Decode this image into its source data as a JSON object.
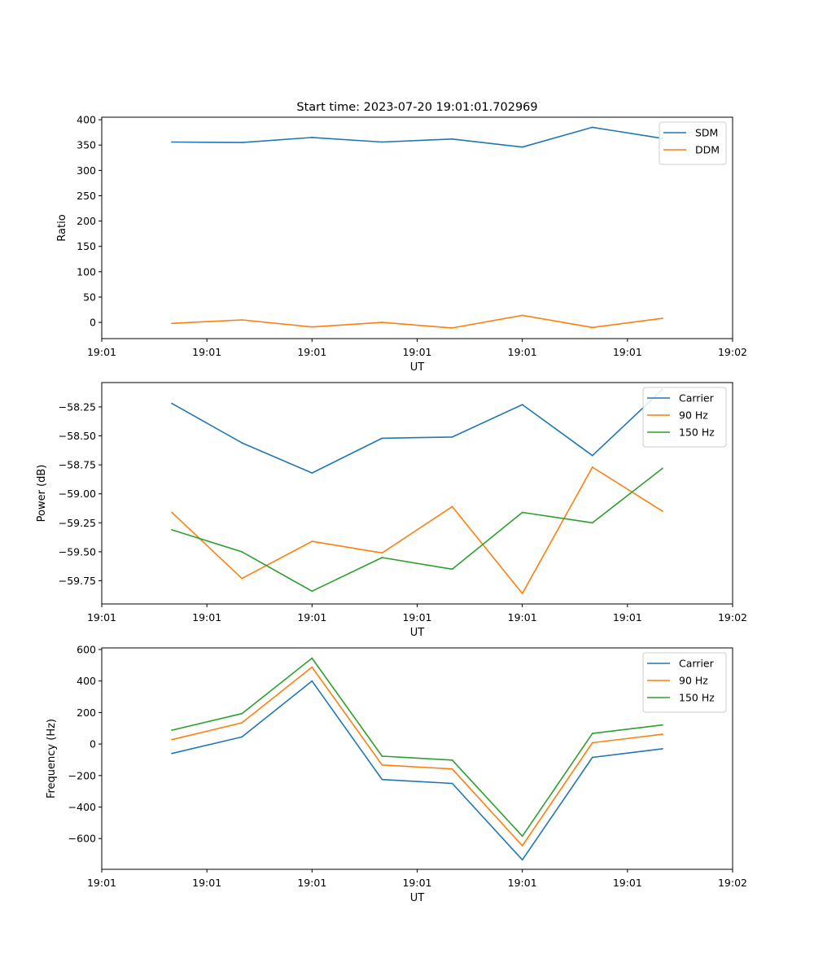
{
  "figure": {
    "title": "Start time: 2023-07-20 19:01:01.702969"
  },
  "colors": {
    "blue": "#1f77b4",
    "orange": "#ff7f0e",
    "green": "#2ca02c"
  },
  "chart_data": [
    {
      "type": "line",
      "title": "Start time: 2023-07-20 19:01:01.702969",
      "xlabel": "UT",
      "ylabel": "Ratio",
      "x": [
        1,
        2,
        3,
        4,
        5,
        6,
        7,
        8
      ],
      "xlim": [
        0,
        9
      ],
      "xticks": [
        0,
        1.5,
        3,
        4.5,
        6,
        7.5,
        9
      ],
      "xtick_labels": [
        "19:01",
        "19:01",
        "19:01",
        "19:01",
        "19:01",
        "19:01",
        "19:02"
      ],
      "ylim": [
        -32,
        405
      ],
      "yticks": [
        0,
        50,
        100,
        150,
        200,
        250,
        300,
        350,
        400
      ],
      "ytick_labels": [
        "0",
        "50",
        "100",
        "150",
        "200",
        "250",
        "300",
        "350",
        "400"
      ],
      "legend_position": "top-right",
      "series": [
        {
          "name": "SDM",
          "color": "#1f77b4",
          "values": [
            356,
            355,
            365,
            356,
            362,
            346,
            385,
            363
          ]
        },
        {
          "name": "DDM",
          "color": "#ff7f0e",
          "values": [
            -2,
            5,
            -9,
            0,
            -11,
            14,
            -10,
            8
          ]
        }
      ]
    },
    {
      "type": "line",
      "xlabel": "UT",
      "ylabel": "Power (dB)",
      "x": [
        1,
        2,
        3,
        4,
        5,
        6,
        7,
        8
      ],
      "xlim": [
        0,
        9
      ],
      "xticks": [
        0,
        1.5,
        3,
        4.5,
        6,
        7.5,
        9
      ],
      "xtick_labels": [
        "19:01",
        "19:01",
        "19:01",
        "19:01",
        "19:01",
        "19:01",
        "19:02"
      ],
      "ylim": [
        -59.95,
        -58.04
      ],
      "yticks": [
        -59.75,
        -59.5,
        -59.25,
        -59.0,
        -58.75,
        -58.5,
        -58.25
      ],
      "ytick_labels": [
        "−59.75",
        "−59.50",
        "−59.25",
        "−59.00",
        "−58.75",
        "−58.50",
        "−58.25"
      ],
      "legend_position": "top-right",
      "series": [
        {
          "name": "Carrier",
          "color": "#1f77b4",
          "values": [
            -58.22,
            -58.56,
            -58.82,
            -58.52,
            -58.51,
            -58.23,
            -58.67,
            -58.1
          ]
        },
        {
          "name": "90 Hz",
          "color": "#ff7f0e",
          "values": [
            -59.16,
            -59.73,
            -59.41,
            -59.51,
            -59.11,
            -59.86,
            -58.77,
            -59.15
          ]
        },
        {
          "name": "150 Hz",
          "color": "#2ca02c",
          "values": [
            -59.31,
            -59.5,
            -59.84,
            -59.55,
            -59.65,
            -59.16,
            -59.25,
            -58.78
          ]
        }
      ]
    },
    {
      "type": "line",
      "xlabel": "UT",
      "ylabel": "Frequency (Hz)",
      "x": [
        1,
        2,
        3,
        4,
        5,
        6,
        7,
        8
      ],
      "xlim": [
        0,
        9
      ],
      "xticks": [
        0,
        1.5,
        3,
        4.5,
        6,
        7.5,
        9
      ],
      "xtick_labels": [
        "19:01",
        "19:01",
        "19:01",
        "19:01",
        "19:01",
        "19:01",
        "19:02"
      ],
      "ylim": [
        -795,
        610
      ],
      "yticks": [
        -600,
        -400,
        -200,
        0,
        200,
        400,
        600
      ],
      "ytick_labels": [
        "−600",
        "−400",
        "−200",
        "0",
        "200",
        "400",
        "600"
      ],
      "legend_position": "top-right",
      "series": [
        {
          "name": "Carrier",
          "color": "#1f77b4",
          "values": [
            -60,
            45,
            400,
            -225,
            -250,
            -735,
            -85,
            -30
          ]
        },
        {
          "name": "90 Hz",
          "color": "#ff7f0e",
          "values": [
            28,
            135,
            488,
            -133,
            -158,
            -645,
            8,
            62
          ]
        },
        {
          "name": "150 Hz",
          "color": "#2ca02c",
          "values": [
            88,
            193,
            545,
            -77,
            -102,
            -585,
            67,
            121
          ]
        }
      ]
    }
  ]
}
